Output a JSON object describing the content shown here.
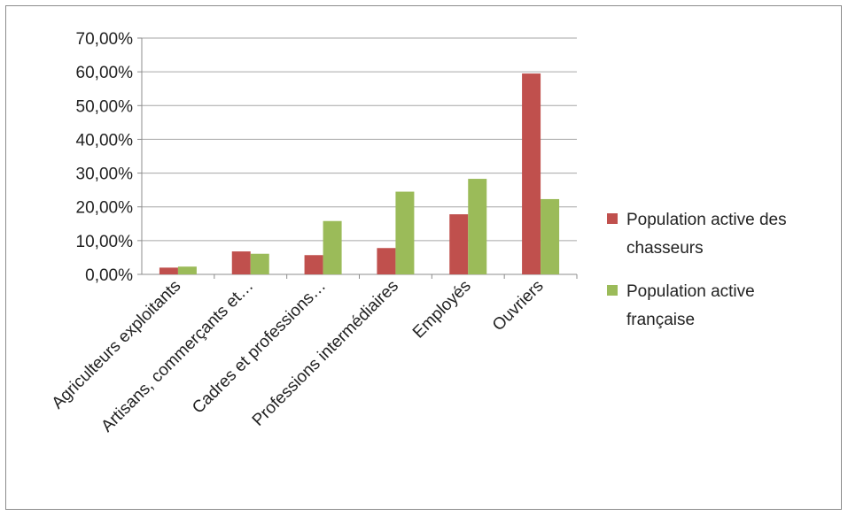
{
  "chart_data": {
    "type": "bar",
    "categories": [
      "Agriculteurs exploitants",
      "Artisans, commerçants et…",
      "Cadres et professions…",
      "Professions intermédiaires",
      "Employés",
      "Ouvriers"
    ],
    "series": [
      {
        "name": "Population active des chasseurs",
        "legend_lines": [
          "Population active des",
          "chasseurs"
        ],
        "color": "#c0504d",
        "values": [
          2.0,
          6.8,
          5.7,
          7.8,
          17.8,
          59.5
        ]
      },
      {
        "name": "Population active française",
        "legend_lines": [
          "Population active",
          "française"
        ],
        "color": "#9bbb59",
        "values": [
          2.3,
          6.1,
          15.8,
          24.5,
          28.3,
          22.3
        ]
      }
    ],
    "y_ticks": [
      "0,00%",
      "10,00%",
      "20,00%",
      "30,00%",
      "40,00%",
      "50,00%",
      "60,00%",
      "70,00%"
    ],
    "ylim": [
      0,
      70
    ],
    "y_unit": "%",
    "grid": true,
    "legend_position": "right",
    "title": "",
    "xlabel": "",
    "ylabel": ""
  }
}
